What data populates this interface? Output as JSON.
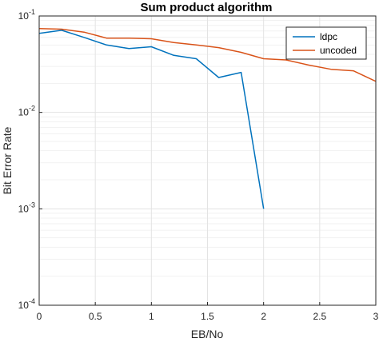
{
  "chart_data": {
    "type": "line",
    "title": "Sum product algorithm",
    "xlabel": "EB/No",
    "ylabel": "Bit Error Rate",
    "xlim": [
      0,
      3
    ],
    "ylim": [
      0.0001,
      0.1
    ],
    "yscale": "log",
    "grid": true,
    "legend_position": "top-right",
    "x_ticks": [
      "0",
      "0.5",
      "1",
      "1.5",
      "2",
      "2.5",
      "3"
    ],
    "y_ticks": [
      {
        "value": 0.1,
        "base": "10",
        "exp": "-1"
      },
      {
        "value": 0.01,
        "base": "10",
        "exp": "-2"
      },
      {
        "value": 0.001,
        "base": "10",
        "exp": "-3"
      },
      {
        "value": 0.0001,
        "base": "10",
        "exp": "-4"
      }
    ],
    "series": [
      {
        "name": "ldpc",
        "color": "#0072BD",
        "x": [
          0,
          0.2,
          0.4,
          0.6,
          0.8,
          1.0,
          1.2,
          1.4,
          1.6,
          1.8,
          2.0
        ],
        "y": [
          0.066,
          0.071,
          0.06,
          0.05,
          0.046,
          0.048,
          0.039,
          0.036,
          0.023,
          0.026,
          0.001
        ]
      },
      {
        "name": "uncoded",
        "color": "#D95319",
        "x": [
          0,
          0.2,
          0.4,
          0.6,
          0.8,
          1.0,
          1.2,
          1.4,
          1.6,
          1.8,
          2.0,
          2.2,
          2.4,
          2.6,
          2.8,
          3.0
        ],
        "y": [
          0.074,
          0.073,
          0.068,
          0.059,
          0.059,
          0.058,
          0.053,
          0.05,
          0.047,
          0.042,
          0.036,
          0.035,
          0.031,
          0.028,
          0.027,
          0.021
        ]
      }
    ]
  }
}
